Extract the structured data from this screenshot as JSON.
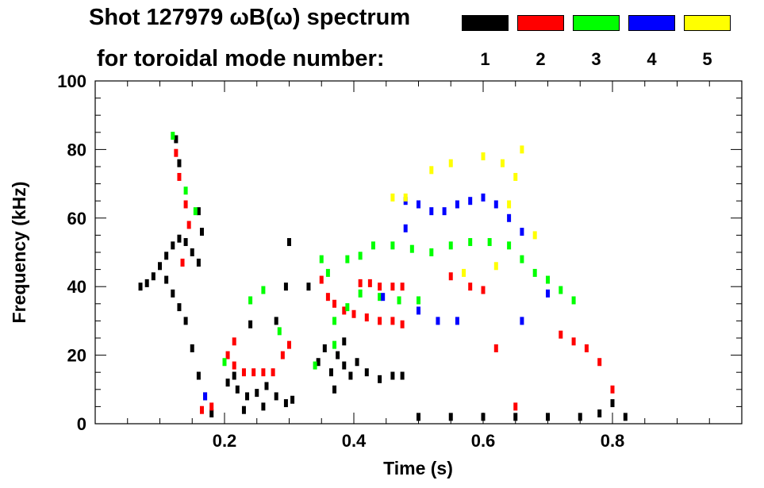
{
  "header": {
    "title": "Shot 127979 ωB(ω) spectrum",
    "subtitle": "for toroidal mode number:"
  },
  "legend": [
    {
      "label": "1",
      "color": "#000000"
    },
    {
      "label": "2",
      "color": "#ff0000"
    },
    {
      "label": "3",
      "color": "#00ff00"
    },
    {
      "label": "4",
      "color": "#0000ff"
    },
    {
      "label": "5",
      "color": "#ffff00"
    }
  ],
  "chart_data": {
    "type": "scatter",
    "title": "Shot 127979 ωB(ω) spectrum",
    "xlabel": "Time (s)",
    "ylabel": "Frequency (kHz)",
    "xlim": [
      0.0,
      1.0
    ],
    "ylim": [
      0,
      100
    ],
    "xticks": [
      0.2,
      0.4,
      0.6,
      0.8
    ],
    "xtick_labels": [
      "0.2",
      "0.4",
      "0.6",
      "0.8"
    ],
    "yticks": [
      0,
      20,
      40,
      60,
      80,
      100
    ],
    "ytick_labels": [
      "0",
      "20",
      "40",
      "60",
      "80",
      "100"
    ],
    "grid": false,
    "legend_position": "top-right",
    "series": [
      {
        "name": "1",
        "color": "#000000",
        "points": [
          [
            0.07,
            40
          ],
          [
            0.08,
            41
          ],
          [
            0.09,
            43
          ],
          [
            0.1,
            46
          ],
          [
            0.11,
            49
          ],
          [
            0.12,
            52
          ],
          [
            0.13,
            54
          ],
          [
            0.14,
            53
          ],
          [
            0.15,
            50
          ],
          [
            0.16,
            47
          ],
          [
            0.11,
            42
          ],
          [
            0.12,
            38
          ],
          [
            0.13,
            34
          ],
          [
            0.14,
            30
          ],
          [
            0.15,
            22
          ],
          [
            0.16,
            14
          ],
          [
            0.17,
            8
          ],
          [
            0.18,
            3
          ],
          [
            0.125,
            83
          ],
          [
            0.13,
            76
          ],
          [
            0.165,
            56
          ],
          [
            0.16,
            62
          ],
          [
            0.205,
            12
          ],
          [
            0.22,
            10
          ],
          [
            0.235,
            8
          ],
          [
            0.25,
            9
          ],
          [
            0.265,
            11
          ],
          [
            0.28,
            8
          ],
          [
            0.295,
            6
          ],
          [
            0.305,
            7
          ],
          [
            0.215,
            14
          ],
          [
            0.26,
            5
          ],
          [
            0.23,
            4
          ],
          [
            0.345,
            18
          ],
          [
            0.355,
            22
          ],
          [
            0.365,
            15
          ],
          [
            0.375,
            20
          ],
          [
            0.385,
            17
          ],
          [
            0.395,
            14
          ],
          [
            0.405,
            18
          ],
          [
            0.42,
            15
          ],
          [
            0.44,
            13
          ],
          [
            0.46,
            14
          ],
          [
            0.475,
            14
          ],
          [
            0.37,
            10
          ],
          [
            0.385,
            24
          ],
          [
            0.5,
            2
          ],
          [
            0.55,
            2
          ],
          [
            0.6,
            2
          ],
          [
            0.65,
            2
          ],
          [
            0.7,
            2
          ],
          [
            0.75,
            2
          ],
          [
            0.78,
            3
          ],
          [
            0.8,
            6
          ],
          [
            0.82,
            2
          ],
          [
            0.295,
            40
          ],
          [
            0.33,
            40
          ],
          [
            0.3,
            53
          ],
          [
            0.24,
            29
          ],
          [
            0.28,
            30
          ]
        ]
      },
      {
        "name": "2",
        "color": "#ff0000",
        "points": [
          [
            0.125,
            79
          ],
          [
            0.13,
            72
          ],
          [
            0.14,
            64
          ],
          [
            0.145,
            58
          ],
          [
            0.135,
            47
          ],
          [
            0.205,
            20
          ],
          [
            0.215,
            17
          ],
          [
            0.23,
            15
          ],
          [
            0.245,
            15
          ],
          [
            0.26,
            15
          ],
          [
            0.275,
            15
          ],
          [
            0.29,
            20
          ],
          [
            0.3,
            23
          ],
          [
            0.215,
            24
          ],
          [
            0.35,
            42
          ],
          [
            0.36,
            37
          ],
          [
            0.37,
            35
          ],
          [
            0.385,
            33
          ],
          [
            0.4,
            32
          ],
          [
            0.42,
            31
          ],
          [
            0.44,
            30
          ],
          [
            0.46,
            30
          ],
          [
            0.475,
            29
          ],
          [
            0.41,
            41
          ],
          [
            0.425,
            41
          ],
          [
            0.44,
            40
          ],
          [
            0.46,
            40
          ],
          [
            0.475,
            40
          ],
          [
            0.55,
            43
          ],
          [
            0.58,
            40
          ],
          [
            0.6,
            39
          ],
          [
            0.62,
            22
          ],
          [
            0.65,
            5
          ],
          [
            0.72,
            26
          ],
          [
            0.74,
            24
          ],
          [
            0.76,
            22
          ],
          [
            0.78,
            18
          ],
          [
            0.8,
            10
          ],
          [
            0.165,
            4
          ],
          [
            0.18,
            5
          ]
        ]
      },
      {
        "name": "3",
        "color": "#00ff00",
        "points": [
          [
            0.39,
            48
          ],
          [
            0.41,
            49
          ],
          [
            0.43,
            52
          ],
          [
            0.46,
            52
          ],
          [
            0.49,
            51
          ],
          [
            0.52,
            50
          ],
          [
            0.55,
            52
          ],
          [
            0.58,
            53
          ],
          [
            0.61,
            53
          ],
          [
            0.64,
            52
          ],
          [
            0.66,
            48
          ],
          [
            0.68,
            44
          ],
          [
            0.7,
            42
          ],
          [
            0.72,
            39
          ],
          [
            0.74,
            36
          ],
          [
            0.37,
            30
          ],
          [
            0.39,
            34
          ],
          [
            0.41,
            38
          ],
          [
            0.44,
            37
          ],
          [
            0.47,
            36
          ],
          [
            0.5,
            36
          ],
          [
            0.35,
            48
          ],
          [
            0.36,
            44
          ],
          [
            0.12,
            84
          ],
          [
            0.14,
            68
          ],
          [
            0.155,
            62
          ],
          [
            0.2,
            18
          ],
          [
            0.24,
            36
          ],
          [
            0.26,
            39
          ],
          [
            0.285,
            27
          ],
          [
            0.34,
            17
          ],
          [
            0.37,
            23
          ]
        ]
      },
      {
        "name": "4",
        "color": "#0000ff",
        "points": [
          [
            0.48,
            65
          ],
          [
            0.5,
            64
          ],
          [
            0.52,
            62
          ],
          [
            0.54,
            62
          ],
          [
            0.56,
            64
          ],
          [
            0.58,
            65
          ],
          [
            0.6,
            66
          ],
          [
            0.62,
            64
          ],
          [
            0.64,
            60
          ],
          [
            0.66,
            56
          ],
          [
            0.445,
            37
          ],
          [
            0.5,
            33
          ],
          [
            0.53,
            30
          ],
          [
            0.56,
            30
          ],
          [
            0.48,
            57
          ],
          [
            0.66,
            30
          ],
          [
            0.7,
            38
          ],
          [
            0.17,
            8
          ]
        ]
      },
      {
        "name": "5",
        "color": "#ffff00",
        "points": [
          [
            0.52,
            74
          ],
          [
            0.55,
            76
          ],
          [
            0.6,
            78
          ],
          [
            0.63,
            76
          ],
          [
            0.65,
            72
          ],
          [
            0.46,
            66
          ],
          [
            0.48,
            66
          ],
          [
            0.57,
            44
          ],
          [
            0.62,
            46
          ],
          [
            0.68,
            55
          ],
          [
            0.66,
            80
          ],
          [
            0.64,
            64
          ]
        ]
      }
    ]
  }
}
